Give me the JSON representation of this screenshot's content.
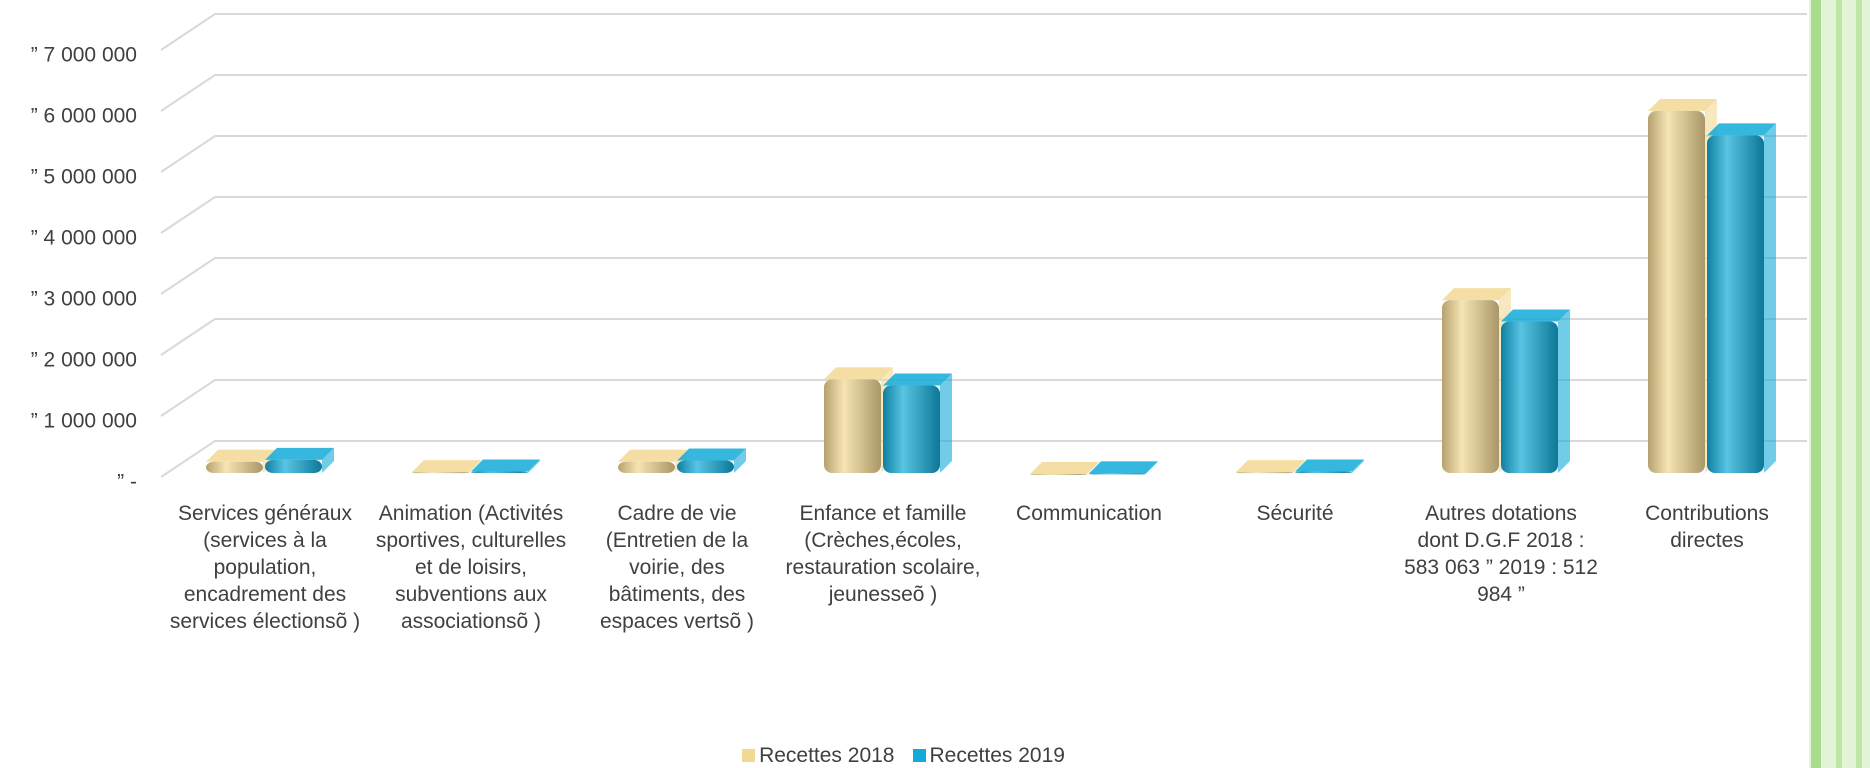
{
  "chart_data": {
    "type": "bar3d",
    "categories": [
      "Services généraux (services à la population, encadrement des services électionsõ )",
      "Animation (Activités sportives, culturelles et de loisirs, subventions aux associationsõ )",
      "Cadre de vie (Entretien de la voirie, des bâtiments, des espaces vertsõ )",
      "Enfance et famille (Crèches,écoles, restauration scolaire, jeunesseõ )",
      "Communication",
      "Sécurité",
      "Autres dotations dont D.G.F 2018 : 583 063 ” 2019 : 512 984 ”",
      "Contributions directes"
    ],
    "series": [
      {
        "name": "Recettes 2018",
        "color": "#f2d894",
        "values": [
          250000,
          80000,
          250000,
          1600000,
          50000,
          80000,
          2900000,
          6000000
        ]
      },
      {
        "name": "Recettes 2019",
        "color": "#12aad8",
        "values": [
          280000,
          90000,
          270000,
          1500000,
          60000,
          90000,
          2550000,
          5600000
        ]
      }
    ],
    "ylim": [
      0,
      7000000
    ],
    "yticks": [
      {
        "value": 0,
        "label": "” -"
      },
      {
        "value": 1000000,
        "label": "” 1 000 000"
      },
      {
        "value": 2000000,
        "label": "” 2 000 000"
      },
      {
        "value": 3000000,
        "label": "” 3 000 000"
      },
      {
        "value": 4000000,
        "label": "” 4 000 000"
      },
      {
        "value": 5000000,
        "label": "” 5 000 000"
      },
      {
        "value": 6000000,
        "label": "” 6 000 000"
      },
      {
        "value": 7000000,
        "label": "” 7 000 000"
      }
    ],
    "grid": true,
    "legend": "bottom"
  }
}
